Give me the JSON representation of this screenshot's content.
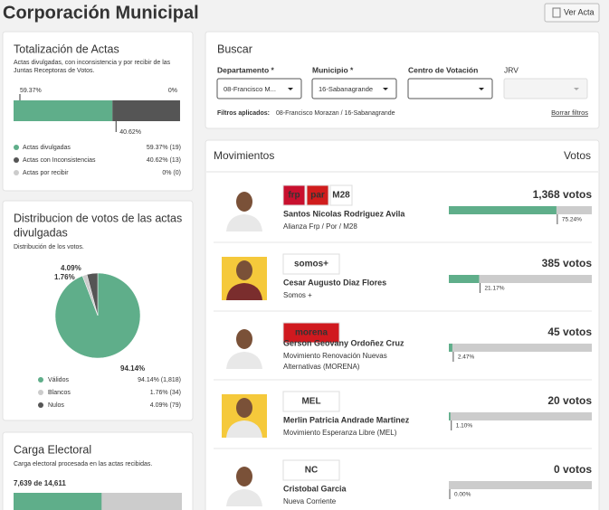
{
  "header": {
    "title": "Corporación Municipal",
    "button": "Ver Acta"
  },
  "totalizacion": {
    "title": "Totalización de Actas",
    "subtitle": [
      "Actas divulgadas, con inconsistencia y por recibir de las",
      "Juntas Receptoras de Votos."
    ],
    "items": [
      {
        "label": "Actas divulgadas",
        "value": 59.37,
        "percent_label": "59.37%",
        "detail_label": "59.37% (19)",
        "color": "#5fae8a"
      },
      {
        "label": "Actas con Inconsistencias",
        "value": 40.62,
        "percent_label": "40.62%",
        "detail_label": "40.62% (13)",
        "color": "#555555"
      },
      {
        "label": "Actas por recibir",
        "value": 0,
        "percent_label": "0%",
        "detail_label": "0% (0)",
        "color": "#cccccc"
      }
    ]
  },
  "distribucion": {
    "title": [
      "Distribucion de votos de las actas",
      "divulgadas"
    ],
    "subtitle": "Distribución de los votos.",
    "items": [
      {
        "label": "Válidos",
        "value": 94.14,
        "percent_label": "94.14%",
        "detail_label": "94.14% (1,818)",
        "color": "#5fae8a"
      },
      {
        "label": "Blancos",
        "value": 1.76,
        "percent_label": "1.76%",
        "detail_label": "1.76% (34)",
        "color": "#cccccc"
      },
      {
        "label": "Nulos",
        "value": 4.09,
        "percent_label": "4.09%",
        "detail_label": "4.09% (79)",
        "color": "#555555"
      }
    ]
  },
  "carga": {
    "title": "Carga Electoral",
    "subtitle": "Carga electoral procesada en las actas recibidas.",
    "current": 7639,
    "total": 14611,
    "label": "7,639 de 14,611"
  },
  "buscar": {
    "title": "Buscar",
    "fields": [
      {
        "label": "Departamento *",
        "value": "08-Francisco M..."
      },
      {
        "label": "Municipio *",
        "value": "16-Sabanagrande"
      },
      {
        "label": "Centro de Votación",
        "value": ""
      },
      {
        "label": "JRV",
        "value": ""
      }
    ],
    "filters_label": "Filtros aplicados:",
    "filters": "08-Francisco Morazan / 16-Sabanagrande",
    "clear": "Borrar filtros"
  },
  "movimientos": {
    "title": "Movimientos",
    "votes_header": "Votos",
    "candidates": [
      {
        "name": "Santos Nicolas Rodriguez Avila",
        "party": [
          "Alianza Frp / Por / M28"
        ],
        "votes_label": "1,368 votos",
        "percent": 75.24,
        "percent_label": "75.24%",
        "logos": [
          {
            "text": "frp",
            "color": "#c8102e"
          },
          {
            "text": "par",
            "color": "#d01c1c"
          },
          {
            "text": "M28",
            "color": "#ffffff"
          }
        ]
      },
      {
        "name": "Cesar Augusto Diaz Flores",
        "party": [
          "Somos +"
        ],
        "votes_label": "385 votos",
        "percent": 21.17,
        "percent_label": "21.17%",
        "logos": [
          {
            "text": "somos+",
            "color": "#ffffff"
          }
        ]
      },
      {
        "name": "Gerson Geovany Ordoñez Cruz",
        "party": [
          "Movimiento Renovación Nuevas",
          "Alternativas (MORENA)"
        ],
        "votes_label": "45 votos",
        "percent": 2.47,
        "percent_label": "2.47%",
        "logos": [
          {
            "text": "morena",
            "color": "#d0191f"
          }
        ]
      },
      {
        "name": "Merlin Patricia Andrade Martinez",
        "party": [
          "Movimiento Esperanza Libre (MEL)"
        ],
        "votes_label": "20 votos",
        "percent": 1.1,
        "percent_label": "1.10%",
        "logos": [
          {
            "text": "MEL",
            "color": "#ffffff"
          }
        ]
      },
      {
        "name": "Cristobal Garcia",
        "party": [
          "Nueva Corriente"
        ],
        "votes_label": "0 votos",
        "percent": 0,
        "percent_label": "0.00%",
        "logos": [
          {
            "text": "NC",
            "color": "#ffffff"
          }
        ]
      }
    ]
  }
}
